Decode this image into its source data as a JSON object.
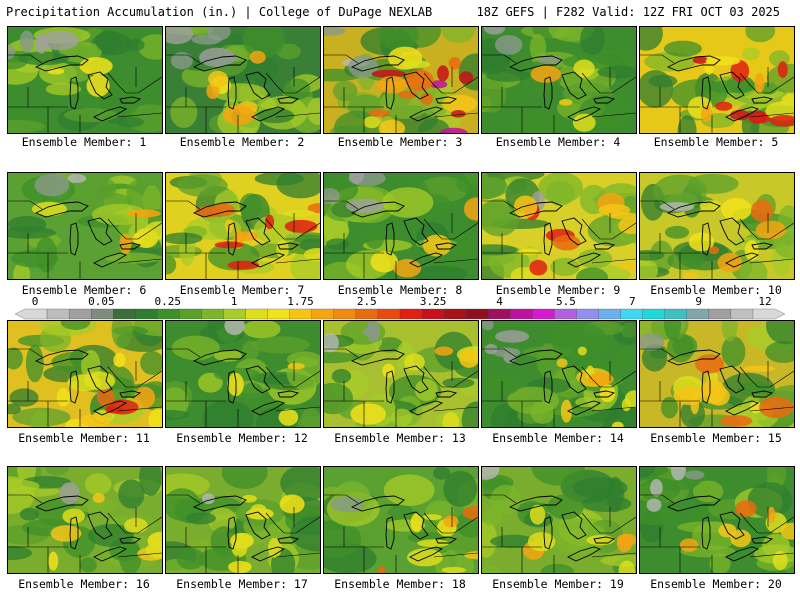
{
  "header": {
    "left": "Precipitation Accumulation (in.) | College of DuPage NEXLAB",
    "right": "18Z GEFS | F282 Valid: 12Z FRI OCT 03 2025"
  },
  "members": [
    {
      "label": "Ensemble Member: 1",
      "dominant": "#3d8c2e",
      "hot": 0.15,
      "dry": 0.25
    },
    {
      "label": "Ensemble Member: 2",
      "dominant": "#3a7f36",
      "hot": 0.25,
      "dry": 0.45
    },
    {
      "label": "Ensemble Member: 3",
      "dominant": "#c8b020",
      "hot": 0.75,
      "dry": 0.2
    },
    {
      "label": "Ensemble Member: 4",
      "dominant": "#3d8c2e",
      "hot": 0.2,
      "dry": 0.2
    },
    {
      "label": "Ensemble Member: 5",
      "dominant": "#e6c818",
      "hot": 0.7,
      "dry": 0.0
    },
    {
      "label": "Ensemble Member: 6",
      "dominant": "#5aa032",
      "hot": 0.3,
      "dry": 0.15
    },
    {
      "label": "Ensemble Member: 7",
      "dominant": "#e0d020",
      "hot": 0.6,
      "dry": 0.0
    },
    {
      "label": "Ensemble Member: 8",
      "dominant": "#3d8c2e",
      "hot": 0.2,
      "dry": 0.3
    },
    {
      "label": "Ensemble Member: 9",
      "dominant": "#d8d028",
      "hot": 0.55,
      "dry": 0.05
    },
    {
      "label": "Ensemble Member: 10",
      "dominant": "#c8c828",
      "hot": 0.4,
      "dry": 0.05
    },
    {
      "label": "Ensemble Member: 11",
      "dominant": "#e0c020",
      "hot": 0.55,
      "dry": 0.0
    },
    {
      "label": "Ensemble Member: 12",
      "dominant": "#3d8c2e",
      "hot": 0.15,
      "dry": 0.1
    },
    {
      "label": "Ensemble Member: 13",
      "dominant": "#a8c030",
      "hot": 0.3,
      "dry": 0.2
    },
    {
      "label": "Ensemble Member: 14",
      "dominant": "#3d8c2e",
      "hot": 0.45,
      "dry": 0.35
    },
    {
      "label": "Ensemble Member: 15",
      "dominant": "#c8b828",
      "hot": 0.5,
      "dry": 0.05
    },
    {
      "label": "Ensemble Member: 16",
      "dominant": "#7aac2e",
      "hot": 0.35,
      "dry": 0.05
    },
    {
      "label": "Ensemble Member: 17",
      "dominant": "#7aac2e",
      "hot": 0.35,
      "dry": 0.05
    },
    {
      "label": "Ensemble Member: 18",
      "dominant": "#5aa032",
      "hot": 0.45,
      "dry": 0.05
    },
    {
      "label": "Ensemble Member: 19",
      "dominant": "#7aac2e",
      "hot": 0.3,
      "dry": 0.1
    },
    {
      "label": "Ensemble Member: 20",
      "dominant": "#3d8c2e",
      "hot": 0.35,
      "dry": 0.3
    }
  ],
  "colorbar": {
    "tick_labels": [
      "0",
      "0.05",
      "0.25",
      "1",
      "1.75",
      "2.5",
      "3.25",
      "4",
      "5.5",
      "7",
      "9",
      "12"
    ],
    "colors": [
      "#d8d8d8",
      "#bdbdbd",
      "#a0a0a0",
      "#7f8c7f",
      "#3a6f3a",
      "#2f7d2f",
      "#3f8f2a",
      "#5ca02c",
      "#7cb52a",
      "#a8cc28",
      "#dede1c",
      "#f2e21a",
      "#f5c516",
      "#f5a412",
      "#f08a10",
      "#ea6a10",
      "#e84a10",
      "#e02010",
      "#c8101a",
      "#a8101a",
      "#901020",
      "#a01060",
      "#c010a0",
      "#d818d0",
      "#b060e0",
      "#9090f0",
      "#6cb0f0",
      "#40d8f0",
      "#20d8d8",
      "#40c0c0",
      "#80a8a8",
      "#a0a0a0",
      "#c0c0c0",
      "#d8d8d8"
    ]
  }
}
